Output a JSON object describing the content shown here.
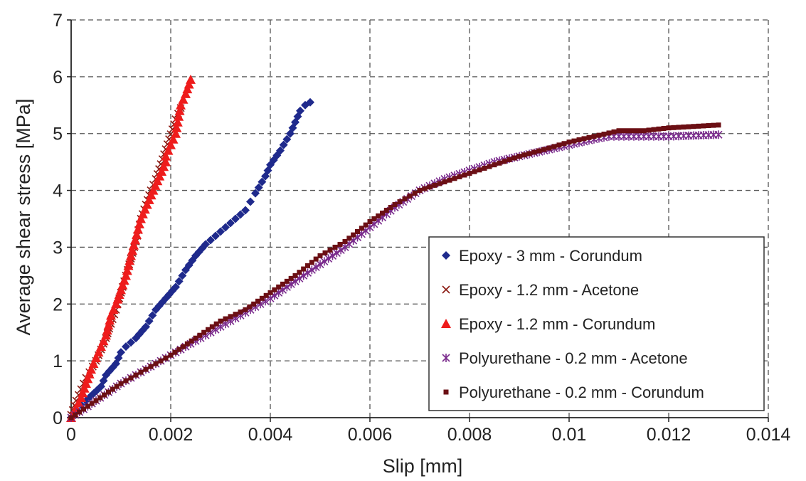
{
  "chart_data": {
    "type": "scatter",
    "xlabel": "Slip [mm]",
    "ylabel": "Average shear stress [MPa]",
    "xlim": [
      0,
      0.014
    ],
    "ylim": [
      0,
      7
    ],
    "xticks": [
      "0",
      "0.002",
      "0.004",
      "0.006",
      "0.008",
      "0.01",
      "0.012",
      "0.014"
    ],
    "yticks": [
      "0",
      "1",
      "2",
      "3",
      "4",
      "5",
      "6",
      "7"
    ],
    "grid": true,
    "legend_position": "right",
    "series": [
      {
        "name": "Epoxy - 3 mm - Corundum",
        "marker": "diamond",
        "color": "#1f2a8c",
        "points": [
          [
            0.0,
            0.0
          ],
          [
            0.0001,
            0.15
          ],
          [
            0.0003,
            0.3
          ],
          [
            0.0006,
            0.55
          ],
          [
            0.0007,
            0.75
          ],
          [
            0.0009,
            0.95
          ],
          [
            0.001,
            1.15
          ],
          [
            0.0011,
            1.25
          ],
          [
            0.0013,
            1.4
          ],
          [
            0.0015,
            1.6
          ],
          [
            0.0017,
            1.9
          ],
          [
            0.0019,
            2.1
          ],
          [
            0.0021,
            2.3
          ],
          [
            0.0023,
            2.6
          ],
          [
            0.0025,
            2.85
          ],
          [
            0.0027,
            3.05
          ],
          [
            0.0029,
            3.2
          ],
          [
            0.0031,
            3.35
          ],
          [
            0.0033,
            3.5
          ],
          [
            0.0035,
            3.65
          ],
          [
            0.0036,
            3.8
          ],
          [
            0.0037,
            3.95
          ],
          [
            0.0039,
            4.25
          ],
          [
            0.004,
            4.45
          ],
          [
            0.0042,
            4.7
          ],
          [
            0.0044,
            5.0
          ],
          [
            0.0045,
            5.2
          ],
          [
            0.0046,
            5.4
          ],
          [
            0.0047,
            5.5
          ],
          [
            0.0048,
            5.55
          ]
        ]
      },
      {
        "name": "Epoxy - 1.2 mm - Acetone",
        "marker": "x",
        "color": "#8b1a12",
        "points": [
          [
            0.0,
            0.05
          ],
          [
            0.0001,
            0.3
          ],
          [
            0.0003,
            0.7
          ],
          [
            0.0005,
            1.0
          ],
          [
            0.0007,
            1.4
          ],
          [
            0.0009,
            1.9
          ],
          [
            0.001,
            2.2
          ],
          [
            0.0011,
            2.5
          ],
          [
            0.0012,
            2.8
          ],
          [
            0.0013,
            3.1
          ],
          [
            0.0014,
            3.5
          ],
          [
            0.0015,
            3.75
          ],
          [
            0.0016,
            4.0
          ],
          [
            0.0017,
            4.2
          ],
          [
            0.0021,
            5.25
          ],
          [
            0.0022,
            5.45
          ]
        ]
      },
      {
        "name": "Epoxy - 1.2 mm - Corundum",
        "marker": "triangle",
        "color": "#ee1c1c",
        "points": [
          [
            0.0,
            0.0
          ],
          [
            0.0002,
            0.35
          ],
          [
            0.0004,
            0.85
          ],
          [
            0.0005,
            1.05
          ],
          [
            0.0007,
            1.45
          ],
          [
            0.0008,
            1.8
          ],
          [
            0.0009,
            2.0
          ],
          [
            0.0011,
            2.5
          ],
          [
            0.0012,
            2.85
          ],
          [
            0.0014,
            3.5
          ],
          [
            0.0019,
            4.5
          ],
          [
            0.0019,
            4.6
          ],
          [
            0.0021,
            5.0
          ],
          [
            0.0022,
            5.5
          ],
          [
            0.0023,
            5.7
          ],
          [
            0.0024,
            5.95
          ]
        ]
      },
      {
        "name": "Polyurethane - 0.2 mm - Acetone",
        "marker": "star",
        "color": "#7a2a8c",
        "points": [
          [
            0.0,
            0.0
          ],
          [
            0.0005,
            0.3
          ],
          [
            0.001,
            0.6
          ],
          [
            0.0015,
            0.85
          ],
          [
            0.002,
            1.1
          ],
          [
            0.0025,
            1.35
          ],
          [
            0.003,
            1.6
          ],
          [
            0.0035,
            1.85
          ],
          [
            0.004,
            2.1
          ],
          [
            0.0045,
            2.4
          ],
          [
            0.005,
            2.7
          ],
          [
            0.0055,
            3.0
          ],
          [
            0.006,
            3.35
          ],
          [
            0.0065,
            3.7
          ],
          [
            0.007,
            4.0
          ],
          [
            0.0075,
            4.2
          ],
          [
            0.008,
            4.35
          ],
          [
            0.0085,
            4.5
          ],
          [
            0.009,
            4.6
          ],
          [
            0.0095,
            4.7
          ],
          [
            0.01,
            4.8
          ],
          [
            0.0105,
            4.9
          ],
          [
            0.0108,
            4.95
          ],
          [
            0.011,
            4.95
          ],
          [
            0.0115,
            4.95
          ],
          [
            0.012,
            4.95
          ],
          [
            0.013,
            4.98
          ]
        ]
      },
      {
        "name": "Polyurethane - 0.2 mm - Corundum",
        "marker": "square",
        "color": "#6b0f14",
        "points": [
          [
            0.0,
            0.0
          ],
          [
            0.0005,
            0.3
          ],
          [
            0.001,
            0.6
          ],
          [
            0.0015,
            0.85
          ],
          [
            0.002,
            1.1
          ],
          [
            0.0025,
            1.4
          ],
          [
            0.003,
            1.7
          ],
          [
            0.0035,
            1.9
          ],
          [
            0.004,
            2.2
          ],
          [
            0.0045,
            2.5
          ],
          [
            0.005,
            2.85
          ],
          [
            0.0055,
            3.1
          ],
          [
            0.006,
            3.45
          ],
          [
            0.0065,
            3.75
          ],
          [
            0.007,
            4.0
          ],
          [
            0.0075,
            4.15
          ],
          [
            0.008,
            4.3
          ],
          [
            0.0085,
            4.45
          ],
          [
            0.009,
            4.6
          ],
          [
            0.0095,
            4.72
          ],
          [
            0.01,
            4.85
          ],
          [
            0.0105,
            4.95
          ],
          [
            0.011,
            5.05
          ],
          [
            0.0115,
            5.05
          ],
          [
            0.012,
            5.1
          ],
          [
            0.013,
            5.15
          ]
        ]
      }
    ]
  }
}
